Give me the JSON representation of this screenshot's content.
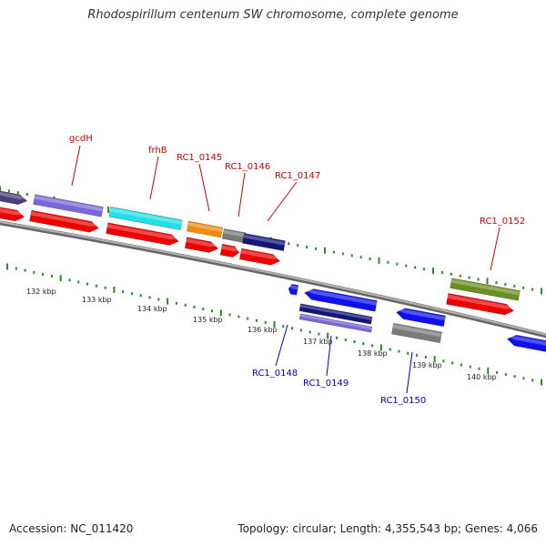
{
  "title": "Rhodospirillum centenum SW chromosome, complete genome",
  "footer": {
    "accession": "Accession: NC_011420",
    "topology": "Topology: circular; Length: 4,355,543 bp; Genes: 4,066"
  },
  "kbp_labels": [
    "132 kbp",
    "133 kbp",
    "134 kbp",
    "135 kbp",
    "136 kbp",
    "137 kbp",
    "138 kbp",
    "139 kbp",
    "140 kbp"
  ],
  "forward_gene_labels": [
    "gcdH",
    "frhB",
    "RC1_0145",
    "RC1_0146",
    "RC1_0147",
    "RC1_0152"
  ],
  "reverse_gene_labels": [
    "RC1_0148",
    "RC1_0149",
    "RC1_0150"
  ],
  "colors": {
    "backbone": "#888888",
    "tick": "#2a8a2a",
    "forward_label": "#cc0000",
    "reverse_label": "#0000bb",
    "cds": "#ee0000",
    "purple": "#7b68d8",
    "cyan": "#22e0e6",
    "orange": "#f08c10",
    "gray": "#7a7a7a",
    "navy": "#14147a",
    "olive": "#6b8e23",
    "blue": "#1010ee"
  }
}
